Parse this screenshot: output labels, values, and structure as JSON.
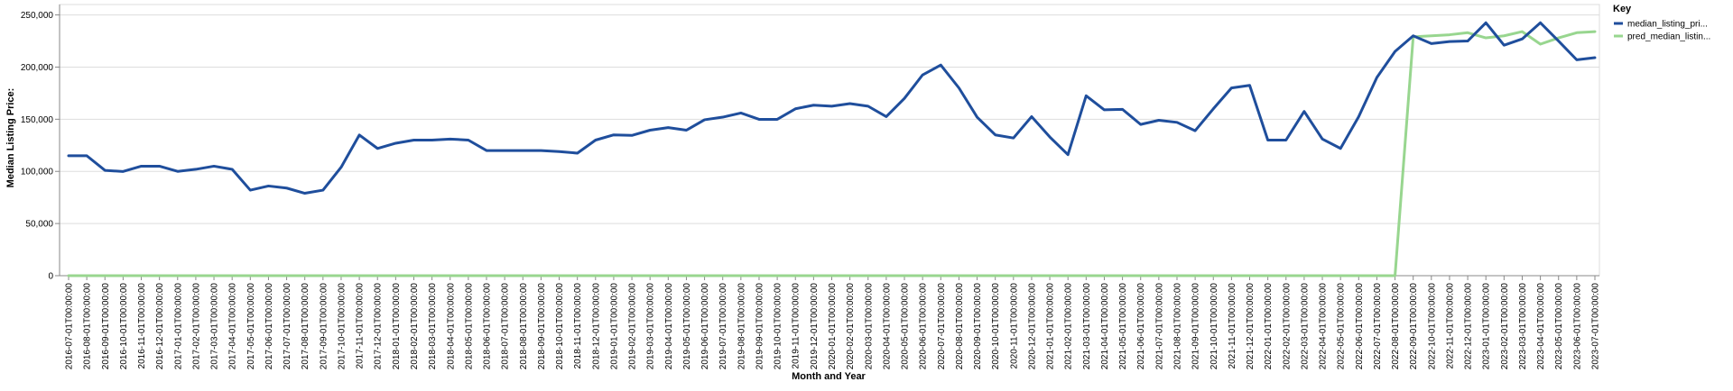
{
  "chart_data": {
    "type": "line",
    "xlabel": "Month and Year",
    "ylabel": "Median Listing Price:",
    "ylim": [
      0,
      260000
    ],
    "y_ticks": [
      0,
      50000,
      100000,
      150000,
      200000,
      250000
    ],
    "y_tick_labels": [
      "0",
      "50,000",
      "100,000",
      "150,000",
      "200,000",
      "250,000"
    ],
    "grid": true,
    "legend_position": "right",
    "legend_title": "Key",
    "x": [
      "2016-07-01T00:00:00",
      "2016-08-01T00:00:00",
      "2016-09-01T00:00:00",
      "2016-10-01T00:00:00",
      "2016-11-01T00:00:00",
      "2016-12-01T00:00:00",
      "2017-01-01T00:00:00",
      "2017-02-01T00:00:00",
      "2017-03-01T00:00:00",
      "2017-04-01T00:00:00",
      "2017-05-01T00:00:00",
      "2017-06-01T00:00:00",
      "2017-07-01T00:00:00",
      "2017-08-01T00:00:00",
      "2017-09-01T00:00:00",
      "2017-10-01T00:00:00",
      "2017-11-01T00:00:00",
      "2017-12-01T00:00:00",
      "2018-01-01T00:00:00",
      "2018-02-01T00:00:00",
      "2018-03-01T00:00:00",
      "2018-04-01T00:00:00",
      "2018-05-01T00:00:00",
      "2018-06-01T00:00:00",
      "2018-07-01T00:00:00",
      "2018-08-01T00:00:00",
      "2018-09-01T00:00:00",
      "2018-10-01T00:00:00",
      "2018-11-01T00:00:00",
      "2018-12-01T00:00:00",
      "2019-01-01T00:00:00",
      "2019-02-01T00:00:00",
      "2019-03-01T00:00:00",
      "2019-04-01T00:00:00",
      "2019-05-01T00:00:00",
      "2019-06-01T00:00:00",
      "2019-07-01T00:00:00",
      "2019-08-01T00:00:00",
      "2019-09-01T00:00:00",
      "2019-10-01T00:00:00",
      "2019-11-01T00:00:00",
      "2019-12-01T00:00:00",
      "2020-01-01T00:00:00",
      "2020-02-01T00:00:00",
      "2020-03-01T00:00:00",
      "2020-04-01T00:00:00",
      "2020-05-01T00:00:00",
      "2020-06-01T00:00:00",
      "2020-07-01T00:00:00",
      "2020-08-01T00:00:00",
      "2020-09-01T00:00:00",
      "2020-10-01T00:00:00",
      "2020-11-01T00:00:00",
      "2020-12-01T00:00:00",
      "2021-01-01T00:00:00",
      "2021-02-01T00:00:00",
      "2021-03-01T00:00:00",
      "2021-04-01T00:00:00",
      "2021-05-01T00:00:00",
      "2021-06-01T00:00:00",
      "2021-07-01T00:00:00",
      "2021-08-01T00:00:00",
      "2021-09-01T00:00:00",
      "2021-10-01T00:00:00",
      "2021-11-01T00:00:00",
      "2021-12-01T00:00:00",
      "2022-01-01T00:00:00",
      "2022-02-01T00:00:00",
      "2022-03-01T00:00:00",
      "2022-04-01T00:00:00",
      "2022-05-01T00:00:00",
      "2022-06-01T00:00:00",
      "2022-07-01T00:00:00",
      "2022-08-01T00:00:00",
      "2022-09-01T00:00:00",
      "2022-10-01T00:00:00",
      "2022-11-01T00:00:00",
      "2022-12-01T00:00:00",
      "2023-01-01T00:00:00",
      "2023-02-01T00:00:00",
      "2023-03-01T00:00:00",
      "2023-04-01T00:00:00",
      "2023-05-01T00:00:00",
      "2023-06-01T00:00:00",
      "2023-07-01T00:00:00"
    ],
    "series": [
      {
        "name": "median_listing_pri...",
        "color": "#1f4e9c",
        "values": [
          115000,
          115000,
          101000,
          99900,
          105000,
          105000,
          100000,
          102000,
          105000,
          102000,
          82000,
          86000,
          84000,
          79000,
          82000,
          104000,
          134900,
          122000,
          127000,
          130000,
          130000,
          131000,
          130000,
          120000,
          120000,
          120000,
          120000,
          119000,
          117500,
          130000,
          135000,
          134500,
          139500,
          142000,
          139500,
          149500,
          152000,
          156000,
          149900,
          149900,
          160000,
          163500,
          162500,
          165000,
          162500,
          152500,
          170000,
          192500,
          202000,
          180000,
          152000,
          135000,
          132000,
          152500,
          133000,
          116000,
          172500,
          159000,
          159500,
          145000,
          149000,
          147000,
          139000,
          160000,
          180000,
          182500,
          130000,
          130000,
          157500,
          131000,
          122000,
          152500,
          190000,
          215000,
          230000,
          222500,
          224500,
          225000,
          242500,
          221000,
          227000,
          242500,
          225000,
          207000,
          209000
        ]
      },
      {
        "name": "pred_median_listin...",
        "color": "#98d68f",
        "values": [
          0,
          0,
          0,
          0,
          0,
          0,
          0,
          0,
          0,
          0,
          0,
          0,
          0,
          0,
          0,
          0,
          0,
          0,
          0,
          0,
          0,
          0,
          0,
          0,
          0,
          0,
          0,
          0,
          0,
          0,
          0,
          0,
          0,
          0,
          0,
          0,
          0,
          0,
          0,
          0,
          0,
          0,
          0,
          0,
          0,
          0,
          0,
          0,
          0,
          0,
          0,
          0,
          0,
          0,
          0,
          0,
          0,
          0,
          0,
          0,
          0,
          0,
          0,
          0,
          0,
          0,
          0,
          0,
          0,
          0,
          0,
          0,
          0,
          0,
          229000,
          230000,
          231000,
          233000,
          228000,
          230000,
          234000,
          222000,
          228000,
          233000,
          234000
        ]
      }
    ]
  }
}
